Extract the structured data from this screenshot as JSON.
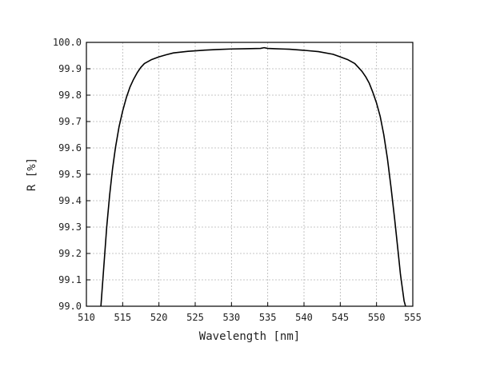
{
  "chart_data": {
    "type": "line",
    "title": "",
    "xlabel": "Wavelength [nm]",
    "ylabel": "R [%]",
    "xlim": [
      510,
      555
    ],
    "ylim": [
      99.0,
      100.0
    ],
    "xticks": [
      "510",
      "515",
      "520",
      "525",
      "530",
      "535",
      "540",
      "545",
      "550",
      "555"
    ],
    "yticks": [
      "99.0",
      "99.1",
      "99.2",
      "99.3",
      "99.4",
      "99.5",
      "99.6",
      "99.7",
      "99.8",
      "99.9",
      "100.0"
    ],
    "grid": true,
    "legend": "none",
    "series": [
      {
        "color": "#000000",
        "x": [
          512.0,
          512.4,
          512.8,
          513.2,
          513.6,
          514.0,
          514.5,
          515.0,
          515.5,
          516.0,
          516.5,
          517.0,
          517.5,
          518.0,
          519.0,
          520.0,
          521.0,
          522.0,
          524.0,
          526.0,
          528.0,
          530.0,
          532.0,
          534.0,
          534.5,
          535.0,
          536.0,
          537.0,
          538.0,
          540.0,
          542.0,
          544.0,
          545.0,
          546.0,
          547.0,
          547.5,
          548.0,
          548.5,
          549.0,
          549.5,
          550.0,
          550.5,
          551.0,
          551.5,
          552.0,
          552.5,
          553.0,
          553.3,
          553.6,
          553.8,
          554.0
        ],
        "y": [
          99.0,
          99.15,
          99.3,
          99.42,
          99.52,
          99.6,
          99.68,
          99.74,
          99.79,
          99.83,
          99.86,
          99.885,
          99.905,
          99.92,
          99.935,
          99.945,
          99.953,
          99.96,
          99.966,
          99.97,
          99.973,
          99.975,
          99.976,
          99.977,
          99.98,
          99.977,
          99.976,
          99.975,
          99.974,
          99.97,
          99.965,
          99.955,
          99.945,
          99.935,
          99.92,
          99.905,
          99.89,
          99.87,
          99.845,
          99.81,
          99.77,
          99.72,
          99.65,
          99.56,
          99.45,
          99.33,
          99.2,
          99.12,
          99.06,
          99.02,
          99.0
        ]
      }
    ]
  }
}
